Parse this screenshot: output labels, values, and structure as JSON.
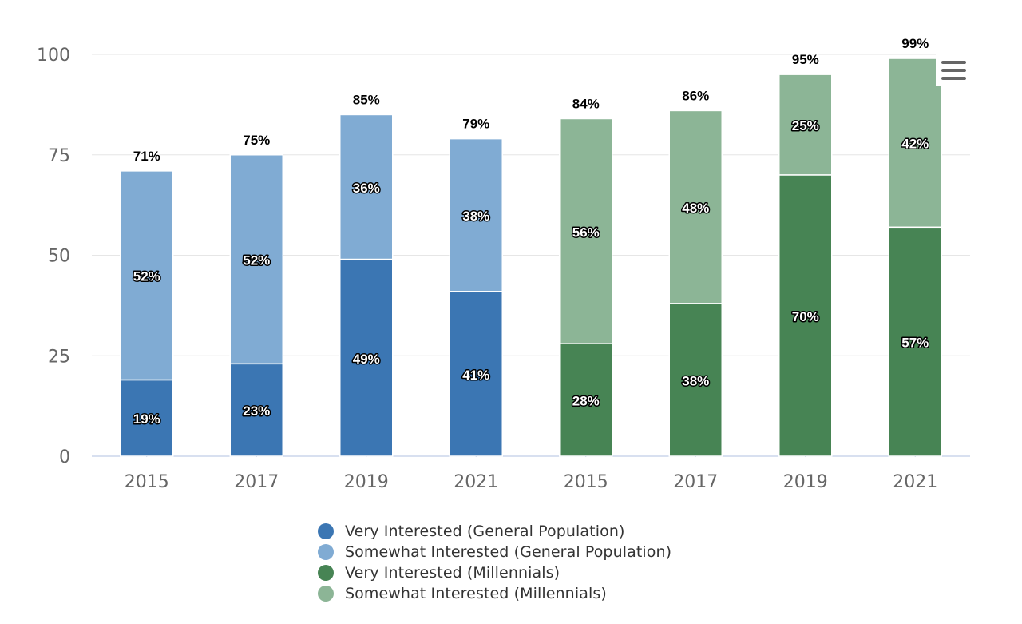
{
  "chart_data": {
    "type": "bar",
    "stacked": true,
    "categories": [
      "2015",
      "2017",
      "2019",
      "2021",
      "2015",
      "2017",
      "2019",
      "2021"
    ],
    "ylim": [
      0,
      100
    ],
    "yticks": [
      0,
      25,
      50,
      75,
      100
    ],
    "grid": true,
    "legend_position": "bottom",
    "series": [
      {
        "name": "Very Interested (General Population)",
        "color": "#3b76b3",
        "values": [
          19,
          23,
          49,
          41,
          null,
          null,
          null,
          null
        ]
      },
      {
        "name": "Somewhat Interested (General Population)",
        "color": "#80abd3",
        "values": [
          52,
          52,
          36,
          38,
          null,
          null,
          null,
          null
        ]
      },
      {
        "name": "Very Interested (Millennials)",
        "color": "#478454",
        "values": [
          null,
          null,
          null,
          null,
          28,
          38,
          70,
          57
        ]
      },
      {
        "name": "Somewhat Interested (Millennials)",
        "color": "#8cb596",
        "values": [
          null,
          null,
          null,
          null,
          56,
          48,
          25,
          42
        ]
      }
    ],
    "totals": [
      71,
      75,
      85,
      79,
      84,
      86,
      95,
      99
    ]
  },
  "menu": {
    "icon": "hamburger-menu-icon"
  }
}
